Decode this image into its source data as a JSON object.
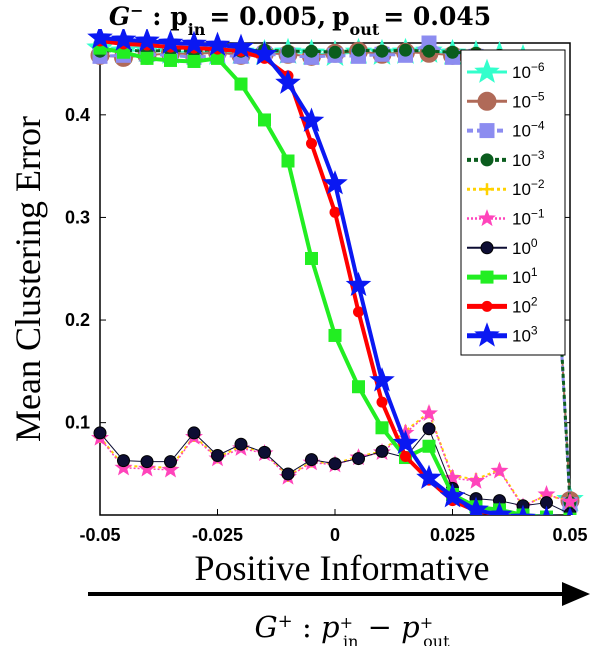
{
  "chart_data": {
    "type": "line",
    "title": "G⁻ : p_in = 0.005, p_out = 0.045",
    "title_parts": {
      "graph": "G",
      "graph_sup": "−",
      "p_in_label": "p",
      "p_in_sub": "in",
      "p_in_value": "= 0.005,",
      "p_out_label": "p",
      "p_out_sub": "out",
      "p_out_value": "= 0.045"
    },
    "xlabel": "Positive Informative",
    "x_sublabel": "G⁺ : p⁺_in − p⁺_out",
    "x_sublabel_parts": {
      "graph": "G",
      "graph_sup": "+",
      "colon": " : ",
      "a": "p",
      "a_sup": "+",
      "a_sub": "in",
      "minus": " − ",
      "b": "p",
      "b_sup": "+",
      "b_sub": "out"
    },
    "ylabel": "Mean Clustering Error",
    "xlim": [
      -0.05,
      0.05
    ],
    "ylim": [
      0.01,
      0.47
    ],
    "x_ticks": [
      -0.05,
      -0.025,
      0,
      0.025,
      0.05
    ],
    "x_tick_labels": [
      "-0.05",
      "-0.025",
      "0",
      "0.025",
      "0.05"
    ],
    "y_ticks": [
      0.1,
      0.2,
      0.3,
      0.4
    ],
    "y_tick_labels": [
      "0.1",
      "0.2",
      "0.3",
      "0.4"
    ],
    "grid": false,
    "legend_position": "top-right",
    "x": [
      -0.05,
      -0.045,
      -0.04,
      -0.035,
      -0.03,
      -0.025,
      -0.02,
      -0.015,
      -0.01,
      -0.005,
      0,
      0.005,
      0.01,
      0.015,
      0.02,
      0.025,
      0.03,
      0.035,
      0.04,
      0.045,
      0.05
    ],
    "series": [
      {
        "name": "10^-6",
        "legend_base": "10",
        "legend_exp": "−6",
        "color": "#33ffcc",
        "marker": "star",
        "marker_size": 13,
        "line_width": 2,
        "dash": "",
        "values": [
          0.465,
          0.462,
          0.463,
          0.461,
          0.462,
          0.46,
          0.461,
          0.46,
          0.461,
          0.46,
          0.459,
          0.461,
          0.46,
          0.461,
          0.462,
          0.46,
          0.459,
          0.458,
          0.455,
          0.44,
          0.025
        ]
      },
      {
        "name": "10^-5",
        "legend_base": "10",
        "legend_exp": "−5",
        "color": "#b06a58",
        "marker": "circle",
        "marker_size": 9,
        "line_width": 2,
        "dash": "",
        "values": [
          0.458,
          0.456,
          0.458,
          0.46,
          0.459,
          0.461,
          0.458,
          0.46,
          0.459,
          0.457,
          0.46,
          0.462,
          0.459,
          0.461,
          0.46,
          0.458,
          0.457,
          0.455,
          0.452,
          0.444,
          0.024
        ]
      },
      {
        "name": "10^-4",
        "legend_base": "10",
        "legend_exp": "−4",
        "color": "#8c8cf0",
        "marker": "square",
        "marker_size": 7,
        "line_width": 3,
        "dash": "6,4",
        "values": [
          0.457,
          0.458,
          0.459,
          0.458,
          0.456,
          0.458,
          0.457,
          0.459,
          0.458,
          0.456,
          0.458,
          0.457,
          0.459,
          0.458,
          0.47,
          0.456,
          0.457,
          0.454,
          0.452,
          0.44,
          0.02
        ]
      },
      {
        "name": "10^-3",
        "legend_base": "10",
        "legend_exp": "−3",
        "color": "#0b5d1e",
        "marker": "circle",
        "marker_size": 6,
        "line_width": 3,
        "dash": "4,3",
        "values": [
          0.462,
          0.463,
          0.462,
          0.463,
          0.462,
          0.464,
          0.462,
          0.463,
          0.462,
          0.462,
          0.461,
          0.463,
          0.462,
          0.463,
          0.462,
          0.461,
          0.46,
          0.458,
          0.456,
          0.446,
          0.022
        ]
      },
      {
        "name": "10^-2",
        "legend_base": "10",
        "legend_exp": "−2",
        "color": "#ffd200",
        "marker": "plus",
        "marker_size": 6,
        "line_width": 2,
        "dash": "3,3",
        "values": [
          0.086,
          0.058,
          0.057,
          0.056,
          0.087,
          0.066,
          0.077,
          0.071,
          0.048,
          0.062,
          0.06,
          0.067,
          0.072,
          0.092,
          0.11,
          0.048,
          0.045,
          0.054,
          0.019,
          0.029,
          0.024
        ]
      },
      {
        "name": "10^-1",
        "legend_base": "10",
        "legend_exp": "−1",
        "color": "#ff44bb",
        "marker": "star",
        "marker_size": 8,
        "line_width": 1.5,
        "dash": "2,2",
        "values": [
          0.085,
          0.056,
          0.055,
          0.054,
          0.086,
          0.065,
          0.075,
          0.07,
          0.047,
          0.061,
          0.059,
          0.066,
          0.071,
          0.09,
          0.109,
          0.046,
          0.043,
          0.053,
          0.018,
          0.03,
          0.023
        ]
      },
      {
        "name": "10^0",
        "legend_base": "10",
        "legend_exp": "0",
        "color": "#0d0d33",
        "marker": "circle",
        "marker_size": 6,
        "line_width": 1,
        "dash": "",
        "values": [
          0.09,
          0.063,
          0.062,
          0.062,
          0.09,
          0.068,
          0.079,
          0.071,
          0.05,
          0.064,
          0.06,
          0.065,
          0.072,
          0.066,
          0.094,
          0.036,
          0.026,
          0.024,
          0.019,
          0.022,
          0.011
        ]
      },
      {
        "name": "10^1",
        "legend_base": "10",
        "legend_exp": "1",
        "color": "#22ee22",
        "marker": "square",
        "marker_size": 6,
        "line_width": 4,
        "dash": "",
        "values": [
          0.465,
          0.461,
          0.455,
          0.453,
          0.452,
          0.455,
          0.43,
          0.395,
          0.355,
          0.26,
          0.185,
          0.135,
          0.095,
          0.066,
          0.077,
          0.03,
          0.018,
          0.015,
          0.01,
          0.008,
          0.006
        ]
      },
      {
        "name": "10^2",
        "legend_base": "10",
        "legend_exp": "2",
        "color": "#ff0000",
        "marker": "circle",
        "marker_size": 5,
        "line_width": 4,
        "dash": "",
        "values": [
          0.472,
          0.469,
          0.468,
          0.466,
          0.465,
          0.464,
          0.462,
          0.455,
          0.438,
          0.372,
          0.305,
          0.208,
          0.12,
          0.067,
          0.044,
          0.024,
          0.014,
          0.01,
          0.007,
          0.006,
          0.005
        ]
      },
      {
        "name": "10^3",
        "legend_base": "10",
        "legend_exp": "3",
        "color": "#0a18f2",
        "marker": "star",
        "marker_size": 12,
        "line_width": 4,
        "dash": "",
        "values": [
          0.475,
          0.473,
          0.472,
          0.47,
          0.469,
          0.468,
          0.466,
          0.459,
          0.431,
          0.394,
          0.333,
          0.234,
          0.141,
          0.08,
          0.046,
          0.028,
          0.015,
          0.01,
          0.007,
          0.006,
          0.005
        ]
      }
    ]
  }
}
